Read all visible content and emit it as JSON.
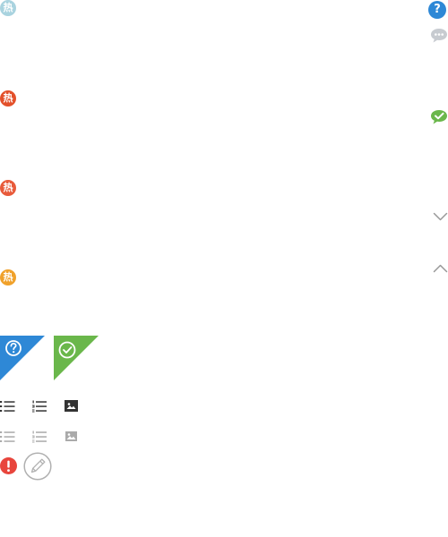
{
  "hot_badges": [
    {
      "label": "热",
      "color": "#a9d3df"
    },
    {
      "label": "热",
      "color": "#e3502a"
    },
    {
      "label": "热",
      "color": "#e85a3a"
    },
    {
      "label": "热",
      "color": "#f0a12a"
    }
  ],
  "right_icons": {
    "help_label": "?",
    "help_color": "#2e88d6",
    "chat_color": "#c7cbd0",
    "chat_check_color": "#6ab74b",
    "chevron_color": "#999999"
  },
  "corner_ribbons": {
    "question_color": "#2e88d6",
    "check_color": "#6ab74b"
  },
  "toolbar_rows": [
    {
      "state": "active",
      "color": "#333333"
    },
    {
      "state": "inactive",
      "color": "#aaaaaa"
    }
  ],
  "alert_icon": {
    "label": "!",
    "color": "#e8453c"
  },
  "edit_icon": {
    "color": "#b0b0b0"
  }
}
